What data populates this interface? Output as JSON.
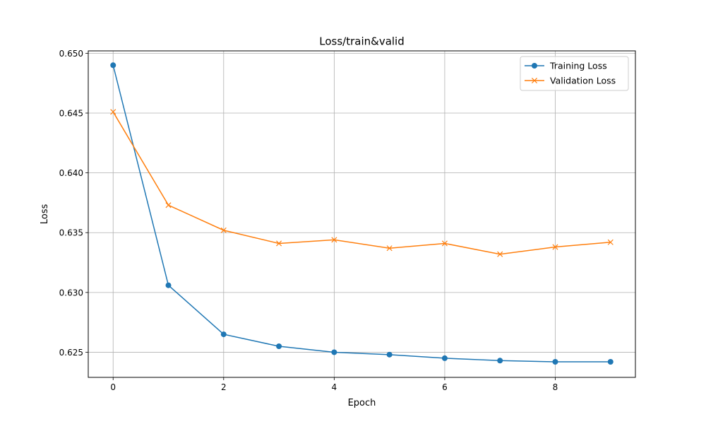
{
  "chart_data": {
    "type": "line",
    "title": "Loss/train&valid",
    "xlabel": "Epoch",
    "ylabel": "Loss",
    "x": [
      0,
      1,
      2,
      3,
      4,
      5,
      6,
      7,
      8,
      9
    ],
    "xlim": [
      -0.45,
      9.45
    ],
    "ylim": [
      0.6229,
      0.6502
    ],
    "xticks": [
      0,
      2,
      4,
      6,
      8
    ],
    "yticks": [
      0.625,
      0.63,
      0.635,
      0.64,
      0.645,
      0.65
    ],
    "xtick_labels": [
      "0",
      "2",
      "4",
      "6",
      "8"
    ],
    "ytick_labels": [
      "0.625",
      "0.630",
      "0.635",
      "0.640",
      "0.645",
      "0.650"
    ],
    "grid": true,
    "legend_position": "top-right",
    "series": [
      {
        "name": "Training Loss",
        "color": "#1f77b4",
        "marker": "circle",
        "values": [
          0.649,
          0.6306,
          0.6265,
          0.6255,
          0.625,
          0.6248,
          0.6245,
          0.6243,
          0.6242,
          0.6242
        ]
      },
      {
        "name": "Validation Loss",
        "color": "#ff7f0e",
        "marker": "x",
        "values": [
          0.6451,
          0.6373,
          0.6352,
          0.6341,
          0.6344,
          0.6337,
          0.6341,
          0.6332,
          0.6338,
          0.6342
        ]
      }
    ]
  }
}
